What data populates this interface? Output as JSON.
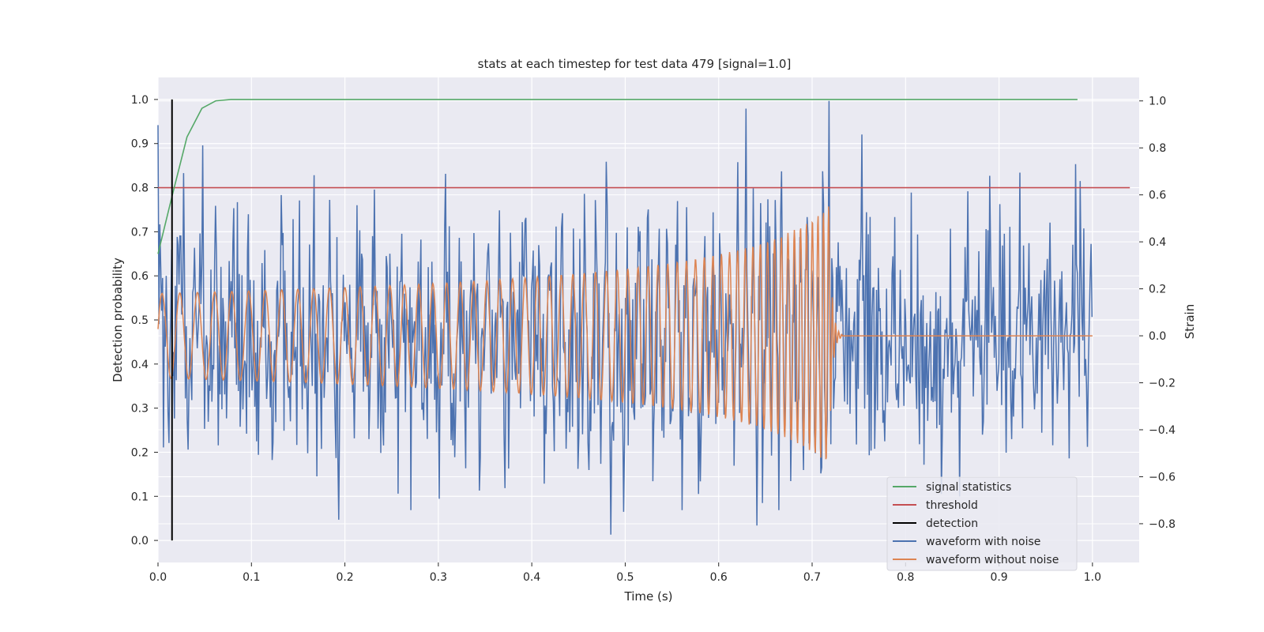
{
  "chart_data": {
    "type": "line",
    "title": "stats at each timestep for test data 479 [signal=1.0]",
    "xlabel": "Time (s)",
    "ylabel_left": "Detection probability",
    "ylabel_right": "Strain",
    "xlim": [
      0.0,
      1.05
    ],
    "ylim_left": [
      -0.05,
      1.05
    ],
    "ylim_right": [
      -0.965,
      1.1
    ],
    "xticks": [
      "0.0",
      "0.1",
      "0.2",
      "0.3",
      "0.4",
      "0.5",
      "0.6",
      "0.7",
      "0.8",
      "0.9",
      "1.0"
    ],
    "yticks_left": [
      "0.0",
      "0.1",
      "0.2",
      "0.3",
      "0.4",
      "0.5",
      "0.6",
      "0.7",
      "0.8",
      "0.9",
      "1.0"
    ],
    "yticks_right": [
      "−0.8",
      "−0.6",
      "−0.4",
      "−0.2",
      "0.0",
      "0.2",
      "0.4",
      "0.6",
      "0.8",
      "1.0"
    ],
    "grid": true,
    "legend_position": "lower-right",
    "colors": {
      "signal_statistics": "#55a868",
      "threshold": "#c44e52",
      "detection": "#000000",
      "waveform_with_noise": "#4c72b0",
      "waveform_without_noise": "#dd8452",
      "background": "#eaeaf2",
      "grid": "#ffffff"
    },
    "series": [
      {
        "name": "signal statistics",
        "axis": "left",
        "x": [
          0.0,
          0.015,
          0.031,
          0.047,
          0.062,
          0.078,
          0.1,
          0.2,
          0.4,
          0.6,
          0.8,
          0.984
        ],
        "y": [
          0.65,
          0.78,
          0.915,
          0.98,
          0.997,
          1.0,
          1.0,
          1.0,
          1.0,
          1.0,
          1.0,
          1.0
        ]
      },
      {
        "name": "threshold",
        "axis": "left",
        "x": [
          0.0,
          1.04
        ],
        "y": [
          0.8,
          0.8
        ]
      },
      {
        "name": "detection",
        "axis": "left",
        "x": [
          0.015,
          0.015
        ],
        "y": [
          0.0,
          1.0
        ]
      },
      {
        "name": "waveform with noise",
        "axis": "right",
        "x_range": [
          0.0,
          1.0
        ],
        "approx_amplitude_range": [
          -0.9,
          1.0
        ]
      },
      {
        "name": "waveform without noise",
        "axis": "right",
        "x_range": [
          0.0,
          1.0
        ],
        "chirp_end": 0.72,
        "approx_amplitude_range": [
          -0.6,
          0.45
        ]
      }
    ]
  }
}
